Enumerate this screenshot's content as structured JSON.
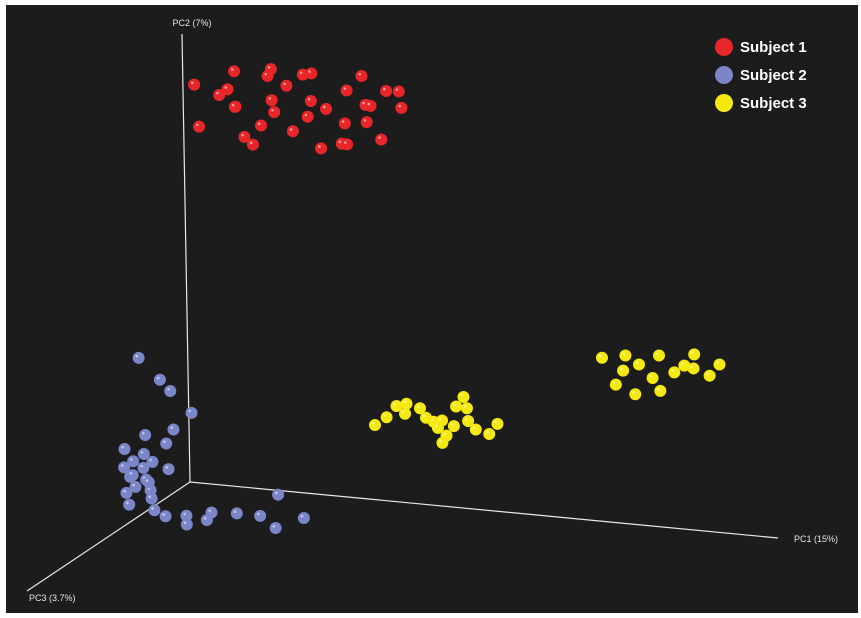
{
  "chart_data": {
    "type": "scatter",
    "title": "",
    "projection": "3d",
    "axes": [
      {
        "key": "PC1",
        "label": "PC1 (15%)"
      },
      {
        "key": "PC2",
        "label": "PC2 (7%)"
      },
      {
        "key": "PC3",
        "label": "PC3 (3.7%)"
      }
    ],
    "grid": false,
    "legend_position": "top-right",
    "series": [
      {
        "name": "Subject 1",
        "color": "#e8262a",
        "points": [
          [
            0.05,
            0.92,
            0.11
          ],
          [
            0.06,
            0.83,
            0.12
          ],
          [
            0.07,
            0.88,
            0.03
          ],
          [
            0.09,
            0.9,
            0.05
          ],
          [
            0.1,
            0.86,
            0.04
          ],
          [
            0.11,
            0.95,
            0.08
          ],
          [
            0.12,
            0.8,
            0.06
          ],
          [
            0.13,
            0.89,
            0.15
          ],
          [
            0.15,
            0.93,
            0.02
          ],
          [
            0.16,
            0.84,
            0.1
          ],
          [
            0.17,
            0.96,
            0.07
          ],
          [
            0.18,
            0.87,
            0.09
          ],
          [
            0.19,
            0.91,
            0.14
          ],
          [
            0.2,
            0.82,
            0.05
          ],
          [
            0.21,
            0.94,
            0.12
          ],
          [
            0.22,
            0.85,
            0.03
          ],
          [
            0.24,
            0.9,
            0.08
          ],
          [
            0.25,
            0.97,
            0.11
          ],
          [
            0.26,
            0.88,
            0.06
          ],
          [
            0.27,
            0.81,
            0.13
          ],
          [
            0.29,
            0.92,
            0.04
          ],
          [
            0.3,
            0.86,
            0.09
          ],
          [
            0.31,
            0.95,
            0.02
          ],
          [
            0.32,
            0.83,
            0.15
          ],
          [
            0.33,
            0.9,
            0.07
          ],
          [
            0.34,
            0.87,
            0.1
          ],
          [
            0.36,
            0.93,
            0.05
          ],
          [
            0.37,
            0.84,
            0.12
          ],
          [
            0.38,
            0.89,
            0.03
          ],
          [
            0.39,
            0.94,
            0.08
          ],
          [
            0.14,
            0.79,
            0.08
          ],
          [
            0.23,
            0.96,
            0.09
          ],
          [
            0.28,
            0.8,
            0.04
          ],
          [
            0.35,
            0.91,
            0.11
          ]
        ]
      },
      {
        "name": "Subject 2",
        "color": "#7b86c9",
        "points": [
          [
            -0.05,
            0.3,
            0.12
          ],
          [
            -0.02,
            0.25,
            0.1
          ],
          [
            0.0,
            0.23,
            0.11
          ],
          [
            0.03,
            0.18,
            0.09
          ],
          [
            0.01,
            0.15,
            0.13
          ],
          [
            -0.03,
            0.14,
            0.16
          ],
          [
            0.0,
            0.12,
            0.14
          ],
          [
            -0.06,
            0.11,
            0.18
          ],
          [
            -0.03,
            0.1,
            0.17
          ],
          [
            -0.01,
            0.09,
            0.19
          ],
          [
            -0.04,
            0.09,
            0.2
          ],
          [
            -0.02,
            0.08,
            0.21
          ],
          [
            -0.05,
            0.08,
            0.22
          ],
          [
            -0.03,
            0.07,
            0.24
          ],
          [
            -0.01,
            0.06,
            0.23
          ],
          [
            0.0,
            0.06,
            0.25
          ],
          [
            -0.02,
            0.05,
            0.26
          ],
          [
            -0.04,
            0.06,
            0.22
          ],
          [
            0.02,
            0.08,
            0.2
          ],
          [
            0.0,
            0.04,
            0.24
          ],
          [
            -0.03,
            0.04,
            0.28
          ],
          [
            0.01,
            0.03,
            0.27
          ],
          [
            -0.02,
            0.02,
            0.3
          ],
          [
            0.02,
            0.01,
            0.29
          ],
          [
            0.05,
            0.01,
            0.33
          ],
          [
            0.08,
            0.01,
            0.31
          ],
          [
            0.12,
            0.02,
            0.3
          ],
          [
            0.1,
            0.01,
            0.38
          ],
          [
            0.14,
            0.03,
            0.4
          ],
          [
            0.18,
            0.04,
            0.36
          ],
          [
            0.22,
            0.06,
            0.25
          ],
          [
            0.2,
            0.02,
            0.29
          ],
          [
            0.24,
            0.01,
            0.34
          ],
          [
            0.28,
            0.03,
            0.31
          ]
        ]
      },
      {
        "name": "Subject 3",
        "color": "#f5e90f",
        "points": [
          [
            0.32,
            0.17,
            -0.06
          ],
          [
            0.34,
            0.2,
            -0.05
          ],
          [
            0.36,
            0.21,
            -0.04
          ],
          [
            0.38,
            0.2,
            -0.05
          ],
          [
            0.39,
            0.18,
            -0.05
          ],
          [
            0.4,
            0.17,
            -0.06
          ],
          [
            0.41,
            0.16,
            -0.05
          ],
          [
            0.42,
            0.18,
            -0.04
          ],
          [
            0.43,
            0.15,
            -0.03
          ],
          [
            0.44,
            0.17,
            -0.04
          ],
          [
            0.45,
            0.22,
            -0.02
          ],
          [
            0.46,
            0.24,
            -0.03
          ],
          [
            0.47,
            0.19,
            -0.02
          ],
          [
            0.48,
            0.17,
            -0.03
          ],
          [
            0.5,
            0.16,
            -0.04
          ],
          [
            0.52,
            0.19,
            -0.02
          ],
          [
            0.36,
            0.19,
            -0.03
          ],
          [
            0.3,
            0.15,
            -0.06
          ],
          [
            0.42,
            0.13,
            -0.04
          ],
          [
            0.46,
            0.21,
            -0.05
          ],
          [
            0.7,
            0.36,
            -0.02
          ],
          [
            0.73,
            0.33,
            -0.04
          ],
          [
            0.74,
            0.37,
            -0.02
          ],
          [
            0.76,
            0.35,
            -0.03
          ],
          [
            0.78,
            0.32,
            -0.04
          ],
          [
            0.79,
            0.29,
            -0.05
          ],
          [
            0.8,
            0.38,
            -0.01
          ],
          [
            0.82,
            0.34,
            -0.03
          ],
          [
            0.84,
            0.36,
            -0.02
          ],
          [
            0.85,
            0.35,
            -0.04
          ],
          [
            0.86,
            0.39,
            -0.01
          ],
          [
            0.88,
            0.34,
            -0.03
          ],
          [
            0.9,
            0.37,
            -0.02
          ],
          [
            0.75,
            0.28,
            -0.04
          ],
          [
            0.72,
            0.3,
            -0.03
          ]
        ]
      }
    ]
  }
}
